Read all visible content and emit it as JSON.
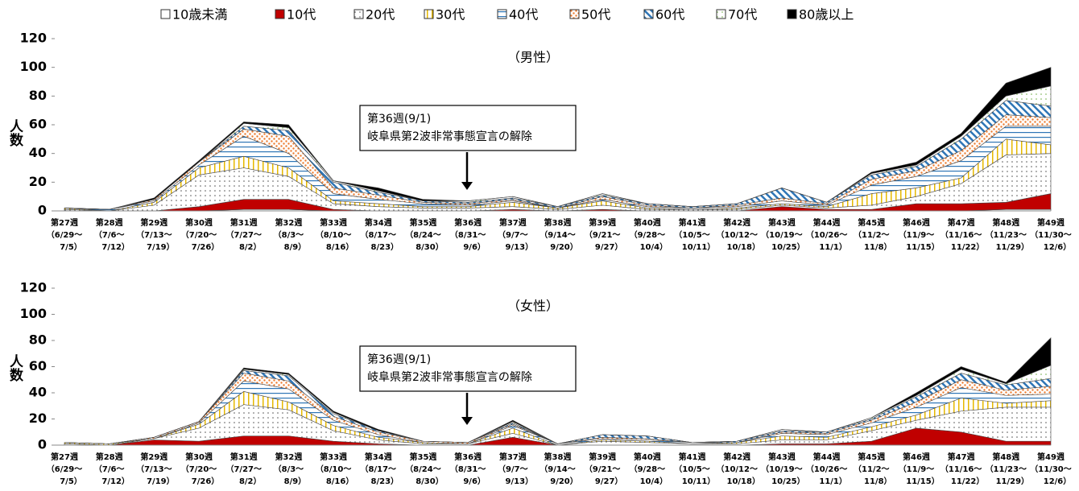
{
  "chart_data": {
    "type": "stacked-area",
    "y_label": "人数",
    "ylim": [
      0,
      120
    ],
    "yticks": [
      0,
      20,
      40,
      60,
      80,
      100,
      120
    ],
    "categories": [
      [
        "第27週",
        "（6/29～",
        "7/5）"
      ],
      [
        "第28週",
        "（7/6～",
        "7/12）"
      ],
      [
        "第29週",
        "（7/13～",
        "7/19）"
      ],
      [
        "第30週",
        "（7/20～",
        "7/26）"
      ],
      [
        "第31週",
        "（7/27～",
        "8/2）"
      ],
      [
        "第32週",
        "（8/3～",
        "8/9）"
      ],
      [
        "第33週",
        "（8/10～",
        "8/16）"
      ],
      [
        "第34週",
        "（8/17～",
        "8/23）"
      ],
      [
        "第35週",
        "（8/24～",
        "8/30）"
      ],
      [
        "第36週",
        "（8/31～",
        "9/6）"
      ],
      [
        "第37週",
        "（9/7～",
        "9/13）"
      ],
      [
        "第38週",
        "（9/14～",
        "9/20）"
      ],
      [
        "第39週",
        "（9/21～",
        "9/27）"
      ],
      [
        "第40週",
        "（9/28～",
        "10/4）"
      ],
      [
        "第41週",
        "（10/5～",
        "10/11）"
      ],
      [
        "第42週",
        "（10/12～",
        "10/18）"
      ],
      [
        "第43週",
        "（10/19～",
        "10/25）"
      ],
      [
        "第44週",
        "（10/26～",
        "11/1）"
      ],
      [
        "第45週",
        "（11/2～",
        "11/8）"
      ],
      [
        "第46週",
        "（11/9～",
        "11/15）"
      ],
      [
        "第47週",
        "（11/16～",
        "11/22）"
      ],
      [
        "第48週",
        "（11/23～",
        "11/29）"
      ],
      [
        "第49週",
        "（11/30～",
        "12/6）"
      ]
    ],
    "panels": [
      {
        "title": "（男性）",
        "annotation": [
          "第36週(9/1)",
          "岐阜県第2波非常事態宣言の解除"
        ]
      },
      {
        "title": "（女性）",
        "annotation": [
          "第36週(9/1)",
          "岐阜県第2波非常事態宣言の解除"
        ]
      }
    ],
    "series": [
      {
        "name": "10歳未満",
        "color": "#ffffff",
        "pattern": "solid",
        "values": [
          [
            0,
            0,
            0,
            0,
            1,
            1,
            0,
            0,
            0,
            0,
            0,
            0,
            0,
            0,
            0,
            0,
            0,
            0,
            0,
            0,
            0,
            1,
            1
          ],
          [
            0,
            0,
            0,
            0,
            0,
            0,
            0,
            0,
            0,
            0,
            0,
            0,
            0,
            0,
            0,
            0,
            0,
            0,
            0,
            0,
            0,
            0,
            0
          ]
        ]
      },
      {
        "name": "10代",
        "color": "#c00000",
        "pattern": "solid",
        "values": [
          [
            0,
            0,
            0,
            3,
            7,
            7,
            1,
            0,
            0,
            0,
            1,
            0,
            1,
            0,
            0,
            0,
            3,
            1,
            1,
            5,
            5,
            5,
            11
          ],
          [
            0,
            0,
            4,
            3,
            7,
            7,
            3,
            1,
            0,
            0,
            6,
            0,
            0,
            0,
            0,
            0,
            1,
            1,
            3,
            13,
            10,
            3,
            3
          ]
        ]
      },
      {
        "name": "20代",
        "color": "#555555",
        "pattern": "dots",
        "values": [
          [
            1,
            0,
            4,
            22,
            22,
            16,
            4,
            3,
            2,
            2,
            2,
            1,
            3,
            1,
            1,
            1,
            1,
            1,
            3,
            5,
            14,
            33,
            28
          ],
          [
            1,
            0,
            1,
            10,
            24,
            20,
            8,
            3,
            1,
            1,
            3,
            0,
            3,
            2,
            1,
            1,
            3,
            3,
            8,
            6,
            16,
            26,
            26
          ]
        ]
      },
      {
        "name": "30代",
        "color": "#e6b800",
        "pattern": "vstripes",
        "values": [
          [
            1,
            0,
            2,
            5,
            8,
            6,
            2,
            2,
            1,
            1,
            3,
            1,
            3,
            1,
            0,
            1,
            1,
            1,
            8,
            6,
            4,
            11,
            6
          ],
          [
            1,
            1,
            0,
            3,
            10,
            6,
            4,
            2,
            1,
            0,
            4,
            0,
            1,
            1,
            0,
            1,
            3,
            2,
            3,
            4,
            10,
            3,
            5
          ]
        ]
      },
      {
        "name": "40代",
        "color": "#2e75b6",
        "pattern": "hlines",
        "values": [
          [
            0,
            1,
            1,
            2,
            14,
            10,
            5,
            3,
            2,
            1,
            1,
            0,
            1,
            1,
            1,
            1,
            2,
            1,
            6,
            8,
            12,
            9,
            13
          ],
          [
            0,
            0,
            0,
            1,
            8,
            10,
            4,
            2,
            0,
            0,
            2,
            1,
            1,
            1,
            1,
            0,
            2,
            2,
            3,
            6,
            8,
            6,
            5
          ]
        ]
      },
      {
        "name": "50代",
        "color": "#ed7d31",
        "pattern": "bigdots",
        "values": [
          [
            0,
            0,
            1,
            2,
            5,
            12,
            4,
            3,
            1,
            1,
            1,
            0,
            2,
            1,
            0,
            1,
            2,
            1,
            4,
            4,
            7,
            8,
            6
          ],
          [
            0,
            0,
            1,
            1,
            6,
            6,
            3,
            2,
            1,
            1,
            1,
            0,
            1,
            1,
            0,
            0,
            1,
            1,
            2,
            4,
            6,
            4,
            6
          ]
        ]
      },
      {
        "name": "60代",
        "color": "#2e75b6",
        "pattern": "diag",
        "values": [
          [
            0,
            0,
            0,
            0,
            2,
            4,
            4,
            2,
            1,
            1,
            1,
            1,
            1,
            1,
            1,
            1,
            7,
            1,
            3,
            3,
            8,
            10,
            8
          ],
          [
            0,
            0,
            0,
            0,
            2,
            4,
            2,
            1,
            0,
            0,
            1,
            0,
            2,
            2,
            0,
            1,
            1,
            1,
            1,
            4,
            5,
            4,
            6
          ]
        ]
      },
      {
        "name": "70代",
        "color": "#70ad47",
        "pattern": "dots",
        "values": [
          [
            0,
            0,
            0,
            0,
            2,
            2,
            1,
            1,
            0,
            1,
            1,
            0,
            1,
            0,
            0,
            0,
            0,
            0,
            1,
            1,
            2,
            3,
            14
          ],
          [
            0,
            0,
            0,
            0,
            1,
            1,
            1,
            0,
            0,
            0,
            1,
            0,
            0,
            0,
            0,
            0,
            1,
            0,
            1,
            1,
            3,
            1,
            10
          ]
        ]
      },
      {
        "name": "80歳以上",
        "color": "#000000",
        "pattern": "solid",
        "values": [
          [
            0,
            0,
            1,
            1,
            1,
            2,
            0,
            2,
            1,
            0,
            0,
            0,
            0,
            0,
            0,
            0,
            0,
            0,
            1,
            2,
            2,
            9,
            13
          ],
          [
            0,
            0,
            0,
            0,
            1,
            1,
            1,
            1,
            0,
            0,
            1,
            0,
            0,
            0,
            0,
            0,
            0,
            0,
            0,
            2,
            2,
            1,
            21
          ]
        ]
      }
    ]
  }
}
